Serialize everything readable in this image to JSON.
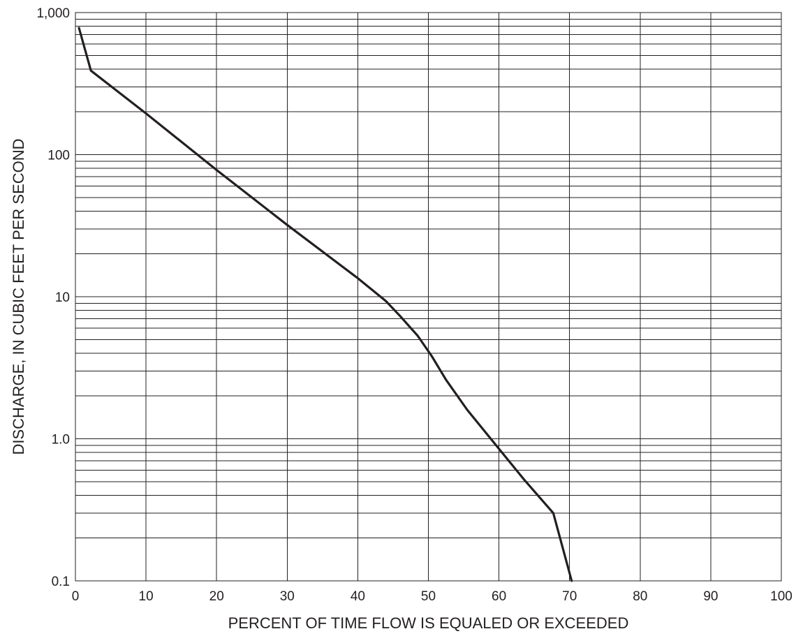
{
  "chart_data": {
    "type": "line",
    "title": "",
    "xlabel": "PERCENT OF TIME FLOW IS EQUALED OR EXCEEDED",
    "ylabel": "DISCHARGE, IN CUBIC FEET PER SECOND",
    "xlim": [
      0,
      100
    ],
    "ylim": [
      0.1,
      1000
    ],
    "yscale": "log",
    "grid": true,
    "legend": "none",
    "x_ticks": [
      0,
      10,
      20,
      30,
      40,
      50,
      60,
      70,
      80,
      90,
      100
    ],
    "x_tick_labels": [
      "0",
      "10",
      "20",
      "30",
      "40",
      "50",
      "60",
      "70",
      "80",
      "90",
      "100"
    ],
    "y_ticks": [
      0.1,
      1,
      10,
      100,
      1000
    ],
    "y_tick_labels": [
      "0.1",
      "1.0",
      "10",
      "100",
      "1,000"
    ],
    "series": [
      {
        "x": [
          0.5,
          2.2,
          10,
          20,
          30,
          40,
          44,
          46,
          48.5,
          50.5,
          52.5,
          55.5,
          60,
          63.5,
          67.7,
          70.3
        ],
        "y": [
          780,
          390,
          195,
          78,
          32,
          13.5,
          9.3,
          7.3,
          5.3,
          3.8,
          2.6,
          1.6,
          0.85,
          0.52,
          0.3,
          0.1
        ]
      }
    ],
    "colors": {
      "line": "#231f20",
      "grid": "#231f20",
      "background": "#ffffff"
    }
  }
}
